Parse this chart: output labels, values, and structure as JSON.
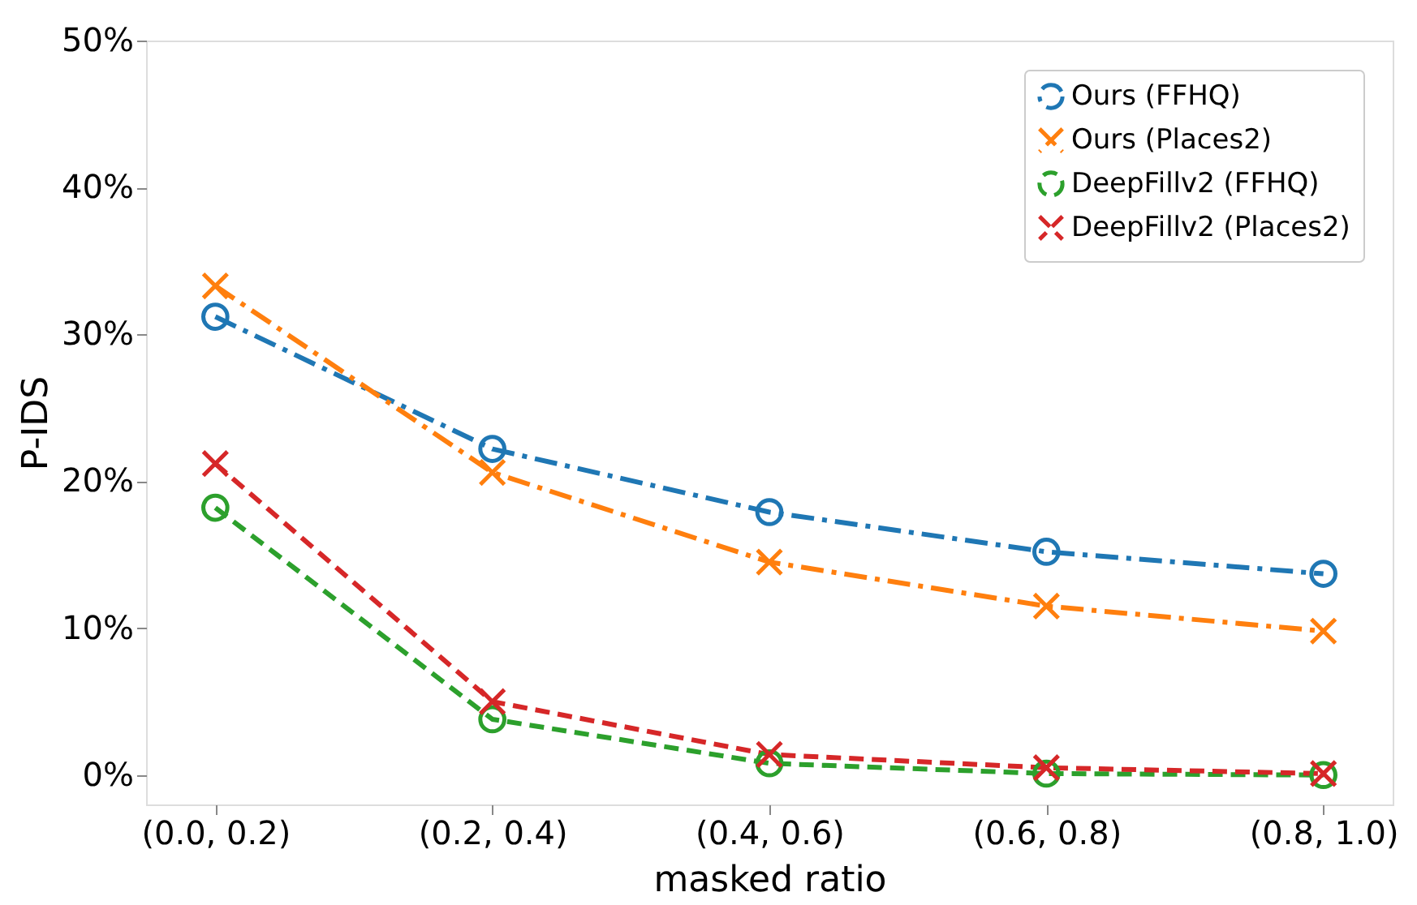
{
  "chart_data": {
    "type": "line",
    "xlabel": "masked ratio",
    "ylabel": "P-IDS",
    "categories": [
      "(0.0, 0.2)",
      "(0.2, 0.4)",
      "(0.4, 0.6)",
      "(0.6, 0.8)",
      "(0.8, 1.0)"
    ],
    "ylim": [
      -2,
      50
    ],
    "yticks": [
      {
        "value": 0,
        "label": "0%"
      },
      {
        "value": 10,
        "label": "10%"
      },
      {
        "value": 20,
        "label": "20%"
      },
      {
        "value": 30,
        "label": "30%"
      },
      {
        "value": 40,
        "label": "40%"
      },
      {
        "value": 50,
        "label": "50%"
      }
    ],
    "grid": false,
    "legend": "top right",
    "series": [
      {
        "name": "Ours (FFHQ)",
        "color": "#1f77b4",
        "marker": "circle",
        "line_style": "dashdot",
        "values": [
          31.2,
          22.2,
          17.9,
          15.2,
          13.7
        ]
      },
      {
        "name": "Ours (Places2)",
        "color": "#ff7f0e",
        "marker": "cross",
        "line_style": "dashdot",
        "values": [
          33.3,
          20.6,
          14.5,
          11.5,
          9.8
        ]
      },
      {
        "name": "DeepFillv2 (FFHQ)",
        "color": "#2ca02c",
        "marker": "circle",
        "line_style": "dashed",
        "values": [
          18.2,
          3.8,
          0.8,
          0.1,
          0.0
        ]
      },
      {
        "name": "DeepFillv2 (Places2)",
        "color": "#d62728",
        "marker": "cross",
        "line_style": "dashed",
        "values": [
          21.2,
          5.0,
          1.4,
          0.5,
          0.1
        ]
      }
    ]
  }
}
